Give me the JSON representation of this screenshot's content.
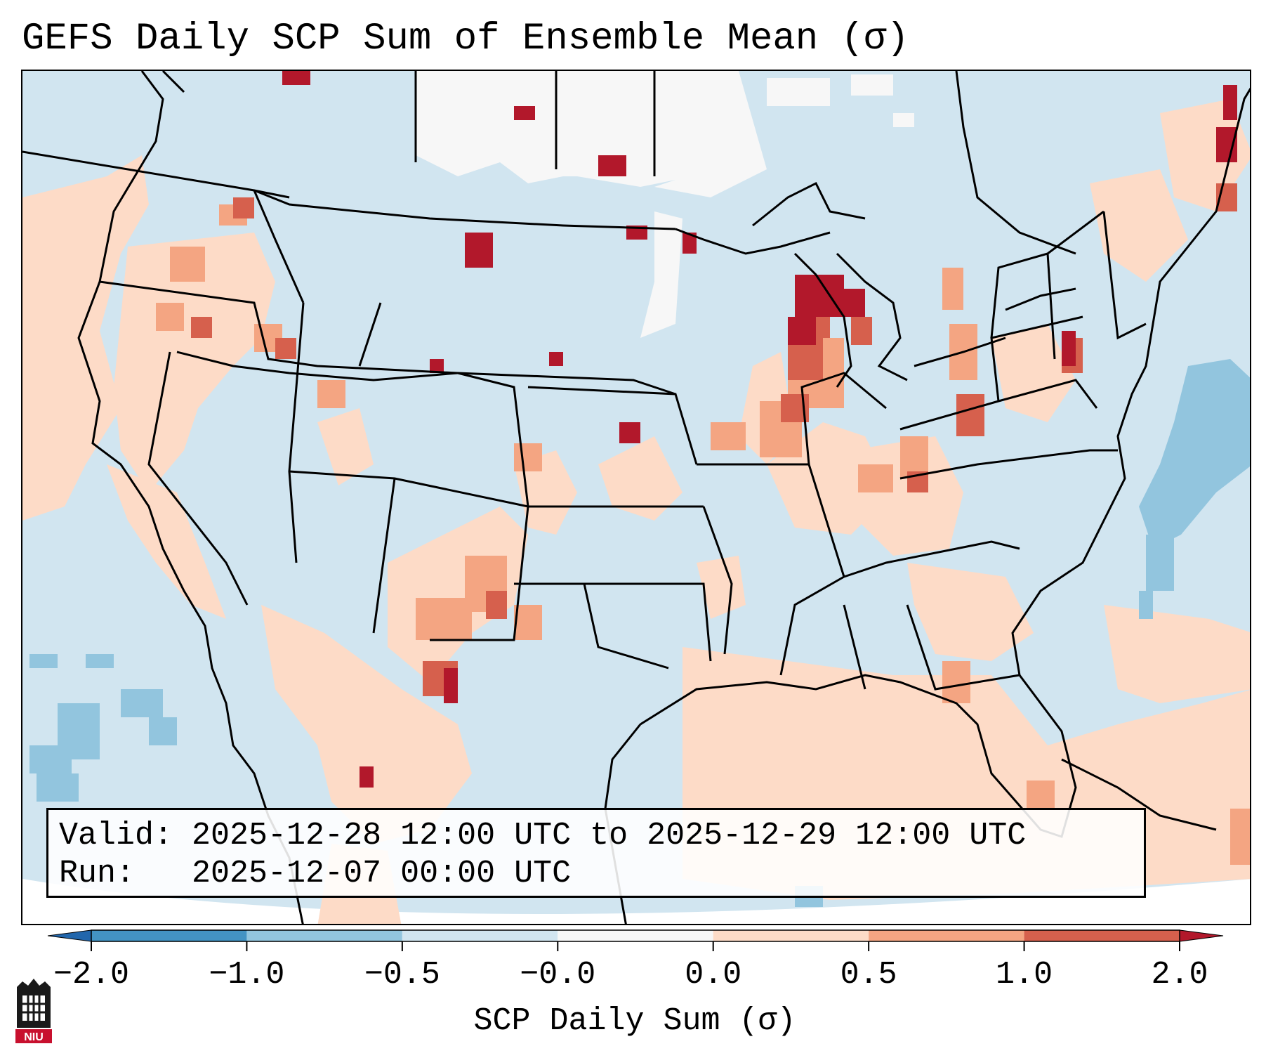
{
  "title": "GEFS Daily SCP Sum of Ensemble Mean (σ)",
  "info": {
    "valid": "Valid: 2025-12-28 12:00 UTC to 2025-12-29 12:00 UTC",
    "run": "Run:   2025-12-07 00:00 UTC"
  },
  "colorbar": {
    "label": "SCP Daily Sum (σ)",
    "ticks": [
      "−2.0",
      "−1.0",
      "−0.5",
      "−0.0",
      "0.0",
      "0.5",
      "1.0",
      "2.0"
    ],
    "bins": [
      {
        "from": -2.0,
        "to": -1.0,
        "color": "#4393c3"
      },
      {
        "from": -1.0,
        "to": -0.5,
        "color": "#92c5de"
      },
      {
        "from": -0.5,
        "to": -0.0,
        "color": "#d1e5f0"
      },
      {
        "from": -0.0,
        "to": 0.0,
        "color": "#f7f7f7"
      },
      {
        "from": 0.0,
        "to": 0.5,
        "color": "#fddbc7"
      },
      {
        "from": 0.5,
        "to": 1.0,
        "color": "#f4a582"
      },
      {
        "from": 1.0,
        "to": 2.0,
        "color": "#d6604d"
      }
    ],
    "under_color": "#2166ac",
    "over_color": "#b2182b"
  },
  "logo": {
    "text": "NIU"
  },
  "colors": {
    "background_field": "#d1e5f0",
    "missing": "#ffffff",
    "border": "#000000"
  }
}
